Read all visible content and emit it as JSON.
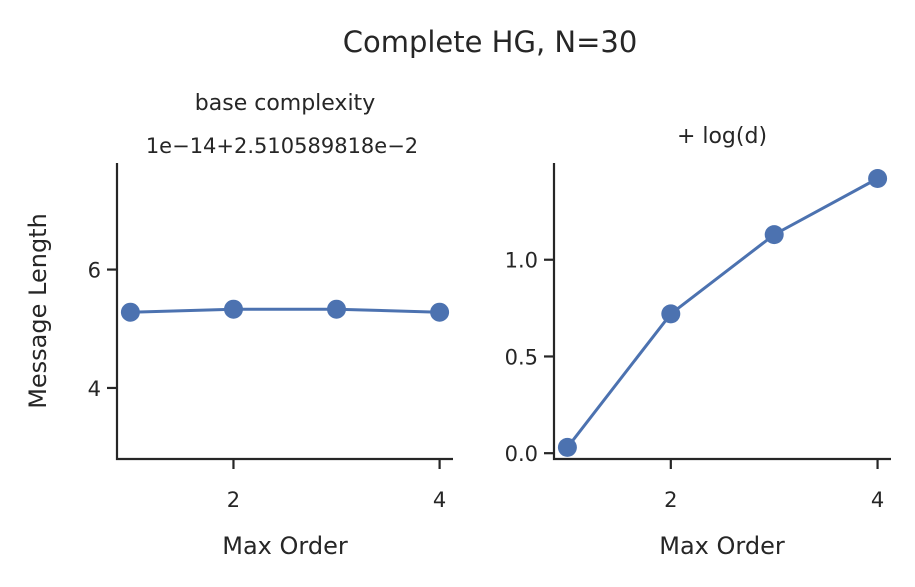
{
  "suptitle": "Complete HG, N=30",
  "chart_data": [
    {
      "type": "line",
      "title": "base complexity",
      "offset_text": "1e−14+2.510589818e−2",
      "xlabel": "Max Order",
      "ylabel": "Message Length",
      "xlim": [
        0.87,
        4.13
      ],
      "ylim": [
        2.8,
        7.8
      ],
      "xticks": [
        2,
        4
      ],
      "xtick_labels": [
        "2",
        "4"
      ],
      "yticks": [
        4,
        6
      ],
      "ytick_labels": [
        "4",
        "6"
      ],
      "color": "#4c72b0",
      "x": [
        1,
        2,
        3,
        4
      ],
      "values": [
        5.28,
        5.33,
        5.33,
        5.28
      ]
    },
    {
      "type": "line",
      "title": "+ log(d)",
      "xlabel": "Max Order",
      "ylabel": "",
      "xlim": [
        0.87,
        4.13
      ],
      "ylim": [
        -0.03,
        1.5
      ],
      "xticks": [
        2,
        4
      ],
      "xtick_labels": [
        "2",
        "4"
      ],
      "yticks": [
        0.0,
        0.5,
        1.0
      ],
      "ytick_labels": [
        "0.0",
        "0.5",
        "1.0"
      ],
      "color": "#4c72b0",
      "x": [
        1,
        2,
        3,
        4
      ],
      "values": [
        0.03,
        0.72,
        1.13,
        1.42
      ]
    }
  ]
}
